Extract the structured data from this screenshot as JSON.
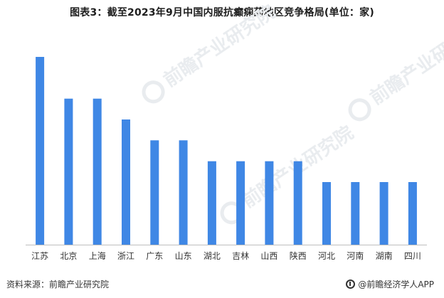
{
  "title": "图表3：截至2023年9月中国内服抗癫痫药地区竞争格局(单位：家)",
  "watermark": "前瞻产业研究院",
  "footer": {
    "source": "资料来源：前瞻产业研究院",
    "brand": "@前瞻经济学人APP"
  },
  "colors": {
    "bar": "#3f87e5",
    "axis": "#bfbfbf"
  },
  "chart_data": {
    "type": "bar",
    "categories": [
      "江苏",
      "北京",
      "上海",
      "浙江",
      "广东",
      "山东",
      "湖北",
      "吉林",
      "山西",
      "陕西",
      "河北",
      "河南",
      "湖南",
      "四川"
    ],
    "values": [
      9,
      7,
      7,
      6,
      5,
      5,
      4,
      4,
      4,
      4,
      3,
      3,
      3,
      3
    ],
    "title": "图表3：截至2023年9月中国内服抗癫痫药地区竞争格局(单位：家)",
    "xlabel": "",
    "ylabel": "",
    "ylim": [
      0,
      9
    ],
    "grid": false,
    "legend": "none"
  }
}
